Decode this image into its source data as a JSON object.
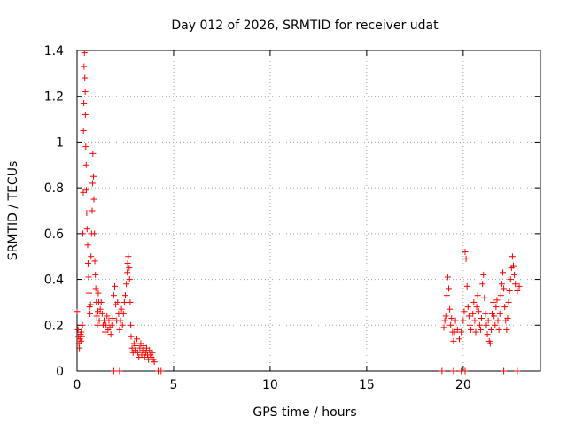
{
  "chart_data": {
    "type": "scatter",
    "title": "Day 012 of 2026, SRMTID for receiver udat",
    "xlabel": "GPS time / hours",
    "ylabel": "SRMTID / TECUs",
    "xlim": [
      0,
      24
    ],
    "ylim": [
      0,
      1.4
    ],
    "xticks": [
      0,
      5,
      10,
      15,
      20
    ],
    "xtick_labels": [
      "0",
      "5",
      "10",
      "15",
      "20"
    ],
    "yticks": [
      0,
      0.2,
      0.4,
      0.6,
      0.8,
      1,
      1.2,
      1.4
    ],
    "ytick_labels": [
      "0",
      "0.2",
      "0.4",
      "0.6",
      "0.8",
      "1",
      "1.2",
      "1.4"
    ],
    "grid": true,
    "marker_color": "#ff0000",
    "series": [
      {
        "name": "SRMTID",
        "marker": "plus",
        "points": [
          [
            0.0,
            0.26
          ],
          [
            0.05,
            0.18
          ],
          [
            0.08,
            0.15
          ],
          [
            0.1,
            0.12
          ],
          [
            0.12,
            0.1
          ],
          [
            0.15,
            0.14
          ],
          [
            0.18,
            0.16
          ],
          [
            0.2,
            0.13
          ],
          [
            0.22,
            0.17
          ],
          [
            0.25,
            0.15
          ],
          [
            0.28,
            0.2
          ],
          [
            0.3,
            0.6
          ],
          [
            0.32,
            0.78
          ],
          [
            0.33,
            1.05
          ],
          [
            0.35,
            1.17
          ],
          [
            0.36,
            1.33
          ],
          [
            0.38,
            1.39
          ],
          [
            0.4,
            1.28
          ],
          [
            0.42,
            1.22
          ],
          [
            0.43,
            1.12
          ],
          [
            0.45,
            0.98
          ],
          [
            0.47,
            0.9
          ],
          [
            0.48,
            0.79
          ],
          [
            0.5,
            0.69
          ],
          [
            0.52,
            0.62
          ],
          [
            0.55,
            0.55
          ],
          [
            0.57,
            0.47
          ],
          [
            0.6,
            0.41
          ],
          [
            0.62,
            0.34
          ],
          [
            0.65,
            0.28
          ],
          [
            0.67,
            0.25
          ],
          [
            0.7,
            0.29
          ],
          [
            0.72,
            0.5
          ],
          [
            0.75,
            0.6
          ],
          [
            0.78,
            0.7
          ],
          [
            0.8,
            0.82
          ],
          [
            0.82,
            0.95
          ],
          [
            0.85,
            0.85
          ],
          [
            0.87,
            0.75
          ],
          [
            0.9,
            0.6
          ],
          [
            0.92,
            0.48
          ],
          [
            0.95,
            0.42
          ],
          [
            0.97,
            0.36
          ],
          [
            1.0,
            0.3
          ],
          [
            1.02,
            0.24
          ],
          [
            1.05,
            0.2
          ],
          [
            1.08,
            0.26
          ],
          [
            1.1,
            0.34
          ],
          [
            1.12,
            0.3
          ],
          [
            1.15,
            0.22
          ],
          [
            1.2,
            0.27
          ],
          [
            1.25,
            0.3
          ],
          [
            1.3,
            0.25
          ],
          [
            1.35,
            0.2
          ],
          [
            1.4,
            0.22
          ],
          [
            1.45,
            0.17
          ],
          [
            1.5,
            0.2
          ],
          [
            1.55,
            0.24
          ],
          [
            1.6,
            0.18
          ],
          [
            1.65,
            0.22
          ],
          [
            1.7,
            0.19
          ],
          [
            1.75,
            0.16
          ],
          [
            1.8,
            0.2
          ],
          [
            1.85,
            0.23
          ],
          [
            1.9,
            0.33
          ],
          [
            1.95,
            0.37
          ],
          [
            2.0,
            0.29
          ],
          [
            2.05,
            0.22
          ],
          [
            2.1,
            0.3
          ],
          [
            2.15,
            0.25
          ],
          [
            2.2,
            0.18
          ],
          [
            2.25,
            0.22
          ],
          [
            2.3,
            0.27
          ],
          [
            2.35,
            0.2
          ],
          [
            2.4,
            0.25
          ],
          [
            2.45,
            0.3
          ],
          [
            2.5,
            0.33
          ],
          [
            2.55,
            0.38
          ],
          [
            2.6,
            0.43
          ],
          [
            2.62,
            0.47
          ],
          [
            2.65,
            0.5
          ],
          [
            2.7,
            0.45
          ],
          [
            2.72,
            0.4
          ],
          [
            2.75,
            0.3
          ],
          [
            2.78,
            0.2
          ],
          [
            2.8,
            0.15
          ],
          [
            2.85,
            0.1
          ],
          [
            2.9,
            0.08
          ],
          [
            2.95,
            0.12
          ],
          [
            3.0,
            0.09
          ],
          [
            3.05,
            0.11
          ],
          [
            3.1,
            0.14
          ],
          [
            3.15,
            0.08
          ],
          [
            3.2,
            0.06
          ],
          [
            3.25,
            0.1
          ],
          [
            3.3,
            0.12
          ],
          [
            3.35,
            0.07
          ],
          [
            3.4,
            0.09
          ],
          [
            3.45,
            0.11
          ],
          [
            3.5,
            0.06
          ],
          [
            3.55,
            0.08
          ],
          [
            3.6,
            0.1
          ],
          [
            3.65,
            0.07
          ],
          [
            3.7,
            0.05
          ],
          [
            3.75,
            0.09
          ],
          [
            3.8,
            0.07
          ],
          [
            3.85,
            0.06
          ],
          [
            3.9,
            0.08
          ],
          [
            3.95,
            0.05
          ],
          [
            4.0,
            0.04
          ],
          [
            1.9,
            0.0
          ],
          [
            2.2,
            0.0
          ],
          [
            4.2,
            0.0
          ],
          [
            4.35,
            0.0
          ],
          [
            18.9,
            0.0
          ],
          [
            19.5,
            0.0
          ],
          [
            19.9,
            0.0
          ],
          [
            20.1,
            0.0
          ],
          [
            22.1,
            0.0
          ],
          [
            22.8,
            0.0
          ],
          [
            19.0,
            0.19
          ],
          [
            19.05,
            0.22
          ],
          [
            19.1,
            0.24
          ],
          [
            19.15,
            0.33
          ],
          [
            19.2,
            0.41
          ],
          [
            19.25,
            0.36
          ],
          [
            19.3,
            0.27
          ],
          [
            19.35,
            0.2
          ],
          [
            19.4,
            0.23
          ],
          [
            19.45,
            0.17
          ],
          [
            19.5,
            0.13
          ],
          [
            19.55,
            0.17
          ],
          [
            19.6,
            0.22
          ],
          [
            19.7,
            0.18
          ],
          [
            19.8,
            0.14
          ],
          [
            19.9,
            0.17
          ],
          [
            20.0,
            0.22
          ],
          [
            20.05,
            0.26
          ],
          [
            20.1,
            0.52
          ],
          [
            20.15,
            0.49
          ],
          [
            20.2,
            0.37
          ],
          [
            20.25,
            0.28
          ],
          [
            20.3,
            0.24
          ],
          [
            20.35,
            0.2
          ],
          [
            20.4,
            0.18
          ],
          [
            20.5,
            0.25
          ],
          [
            20.55,
            0.3
          ],
          [
            20.6,
            0.22
          ],
          [
            20.65,
            0.17
          ],
          [
            20.7,
            0.28
          ],
          [
            20.75,
            0.33
          ],
          [
            20.8,
            0.26
          ],
          [
            20.85,
            0.2
          ],
          [
            20.9,
            0.18
          ],
          [
            20.95,
            0.23
          ],
          [
            21.0,
            0.38
          ],
          [
            21.05,
            0.42
          ],
          [
            21.1,
            0.32
          ],
          [
            21.15,
            0.25
          ],
          [
            21.2,
            0.2
          ],
          [
            21.25,
            0.16
          ],
          [
            21.3,
            0.22
          ],
          [
            21.35,
            0.13
          ],
          [
            21.4,
            0.12
          ],
          [
            21.45,
            0.18
          ],
          [
            21.5,
            0.25
          ],
          [
            21.55,
            0.3
          ],
          [
            21.6,
            0.24
          ],
          [
            21.65,
            0.2
          ],
          [
            21.7,
            0.28
          ],
          [
            21.75,
            0.31
          ],
          [
            21.8,
            0.22
          ],
          [
            21.85,
            0.18
          ],
          [
            21.9,
            0.25
          ],
          [
            21.95,
            0.33
          ],
          [
            22.0,
            0.38
          ],
          [
            22.05,
            0.43
          ],
          [
            22.1,
            0.36
          ],
          [
            22.15,
            0.28
          ],
          [
            22.2,
            0.22
          ],
          [
            22.25,
            0.18
          ],
          [
            22.3,
            0.23
          ],
          [
            22.35,
            0.3
          ],
          [
            22.4,
            0.35
          ],
          [
            22.45,
            0.4
          ],
          [
            22.5,
            0.45
          ],
          [
            22.55,
            0.5
          ],
          [
            22.6,
            0.46
          ],
          [
            22.65,
            0.42
          ],
          [
            22.7,
            0.38
          ],
          [
            22.8,
            0.35
          ],
          [
            22.9,
            0.37
          ]
        ]
      }
    ]
  }
}
